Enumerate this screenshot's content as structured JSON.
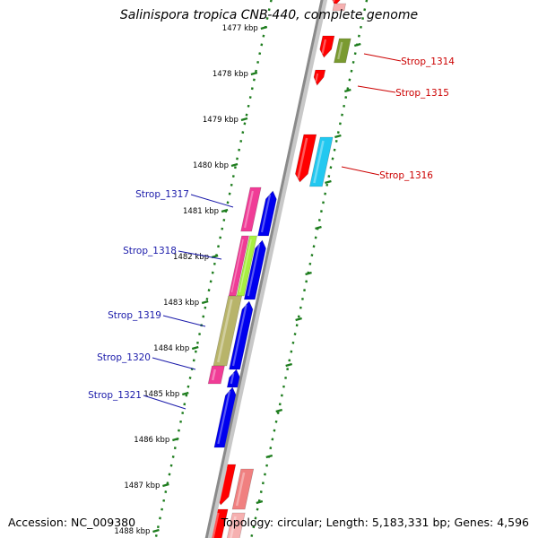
{
  "title": "Salinispora tropica CNB-440, complete genome",
  "footer": {
    "accession": "Accession: NC_009380",
    "summary": "Topology: circular; Length: 5,183,331 bp; Genes: 4,596"
  },
  "colors": {
    "backbone": "#8a8a8a",
    "ticks": "#1e7d1e",
    "forward_label": "#cc0000",
    "reverse_label": "#1a1aaa",
    "red": "#ff0000",
    "pink": "#f03c96",
    "blue": "#0000ee",
    "cyan": "#22c8f0",
    "olive": "#7a9a30",
    "khaki": "#b8b46a",
    "lime": "#a8f040",
    "salmon": "#f08080"
  },
  "scale_labels": [
    "1477 kbp",
    "1478 kbp",
    "1479 kbp",
    "1480 kbp",
    "1481 kbp",
    "1482 kbp",
    "1483 kbp",
    "1484 kbp",
    "1485 kbp",
    "1486 kbp",
    "1487 kbp",
    "1488 kbp"
  ],
  "gene_labels": [
    {
      "text": "Strop_1314",
      "strand": "forward"
    },
    {
      "text": "Strop_1315",
      "strand": "forward"
    },
    {
      "text": "Strop_1316",
      "strand": "forward"
    },
    {
      "text": "Strop_1317",
      "strand": "reverse"
    },
    {
      "text": "Strop_1318",
      "strand": "reverse"
    },
    {
      "text": "Strop_1319",
      "strand": "reverse"
    },
    {
      "text": "Strop_1320",
      "strand": "reverse"
    },
    {
      "text": "Strop_1321",
      "strand": "reverse"
    }
  ]
}
